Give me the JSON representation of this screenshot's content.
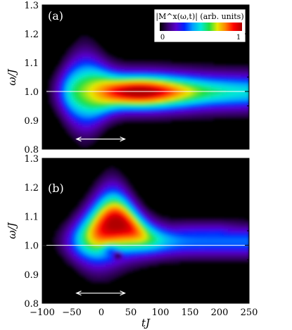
{
  "chart_data": [
    {
      "type": "heatmap",
      "panel_label": "(a)",
      "xlim": [
        -100,
        250
      ],
      "ylim": [
        0.8,
        1.3
      ],
      "ylabel": "ω/J",
      "yticks": [
        0.8,
        0.9,
        1.0,
        1.1,
        1.2,
        1.3
      ],
      "ytick_labels": [
        "0.8",
        "0.9",
        "1.0",
        "1.1",
        "1.2",
        "1.3"
      ],
      "reference_line_y": 1.0,
      "arrow_x": [
        -42,
        40
      ],
      "arrow_y": 0.835,
      "features": [
        {
          "t0": -75,
          "w0": 1.0,
          "desc": "broad band onset"
        },
        {
          "t_peak": 65,
          "w_peak": 1.0,
          "value": 1.0
        }
      ],
      "colorbar": {
        "label": "|M^x(ω,t)| (arb. units)",
        "min_label": "0",
        "max_label": "1",
        "colors": [
          "#000000",
          "#3a0070",
          "#5a00d0",
          "#0022ff",
          "#00a0ff",
          "#00e8d8",
          "#20e040",
          "#e8e800",
          "#ff8000",
          "#ff0000",
          "#b00000"
        ]
      }
    },
    {
      "type": "heatmap",
      "panel_label": "(b)",
      "xlim": [
        -100,
        250
      ],
      "ylim": [
        0.8,
        1.3
      ],
      "xlabel": "tJ",
      "ylabel": "ω/J",
      "xticks": [
        -100,
        -50,
        0,
        50,
        100,
        150,
        200,
        250
      ],
      "xtick_labels": [
        "−100",
        "−50",
        "0",
        "50",
        "100",
        "150",
        "200",
        "250"
      ],
      "yticks": [
        0.8,
        0.9,
        1.0,
        1.1,
        1.2,
        1.3
      ],
      "ytick_labels": [
        "0.8",
        "0.9",
        "1.0",
        "1.1",
        "1.2",
        "1.3"
      ],
      "reference_line_y": 1.0,
      "arrow_x": [
        -42,
        40
      ],
      "arrow_y": 0.835,
      "features": [
        {
          "t_peak": 25,
          "w_peak": 1.075,
          "value": 1.0
        },
        {
          "t_dip": 28,
          "w_dip": 0.965,
          "value": 0.0
        }
      ]
    }
  ]
}
